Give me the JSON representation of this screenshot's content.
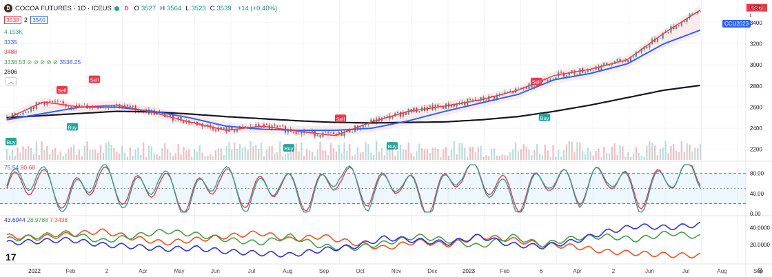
{
  "header": {
    "logo_letter": "₿",
    "title": "COCOA FUTURES · 1D · ICEUS",
    "market_status_color": "#26a69a",
    "delay_badge": "D",
    "ohlc": [
      {
        "k": "O",
        "v": "3527"
      },
      {
        "k": "H",
        "v": "3564"
      },
      {
        "k": "L",
        "v": "3523"
      },
      {
        "k": "C",
        "v": "3539"
      },
      {
        "k": "",
        "v": "+14 (+0.40%)"
      }
    ],
    "sell_price": "3538",
    "spread": "2",
    "buy_price": "3540"
  },
  "indicators": {
    "volume": "4.153K",
    "ma_blue": "3335",
    "ma_red": "3488",
    "supertrend_label": "3338.53  ⊘ ⊘ ⊘ ⊘ ⊘",
    "supertrend_value": "3538.25",
    "ma_black": "2806",
    "collapse_icon": "chevron-up"
  },
  "symbol_tag": "CCU2023",
  "currency": {
    "label": "USD",
    "sub": "t"
  },
  "stoch": {
    "k": "75.54",
    "d": "80.68"
  },
  "dmi": {
    "plus": "43.6944",
    "minus": "28.9788",
    "adx": "7.3438"
  },
  "colors": {
    "up": "#26a69a",
    "down": "#f23645",
    "blue": "#2962ff",
    "black": "#131722",
    "sell": "#f23645",
    "buy": "#26a69a",
    "dmi_blue": "#2b33e0",
    "dmi_green": "#43a047",
    "dmi_orange": "#f4511e"
  },
  "price_axis": [
    "3400",
    "3200",
    "3000",
    "2800",
    "2600",
    "2400",
    "2200"
  ],
  "stoch_axis": [
    "80.00",
    "40.00",
    "0.00"
  ],
  "dmi_axis": [
    "40.0000",
    "20.0000"
  ],
  "time_axis": [
    "2022",
    "Feb",
    "2",
    "Apr",
    "May",
    "Jun",
    "Jul",
    "Aug",
    "Sep",
    "Oct",
    "Nov",
    "Dec",
    "2023",
    "Feb",
    "6",
    "Apr",
    "2",
    "Jun",
    "Jul",
    "Aug",
    "Sep"
  ],
  "signals": [
    {
      "text": "Sell",
      "x": "Feb",
      "price": 2760
    },
    {
      "text": "Sell",
      "x": "Feb",
      "price": 2860
    },
    {
      "text": "Sell",
      "x": "Aug",
      "price": 2490
    },
    {
      "text": "Sell",
      "x": "Feb",
      "price": 2840
    },
    {
      "text": "Buy",
      "x": "2022",
      "price": 2270
    },
    {
      "text": "Buy",
      "x": "Jan",
      "price": 2410
    },
    {
      "text": "Buy",
      "x": "Aug",
      "price": 2210
    },
    {
      "text": "Buy",
      "x": "Oct",
      "price": 2230
    },
    {
      "text": "Buy",
      "x": "Mar",
      "price": 2500
    }
  ],
  "chart_data": {
    "type": "line",
    "title": "COCOA FUTURES · 1D · ICEUS",
    "x": [
      "2022-01",
      "2022-02",
      "2022-03",
      "2022-04",
      "2022-05",
      "2022-06",
      "2022-07",
      "2022-08",
      "2022-09",
      "2022-10",
      "2022-11",
      "2022-12",
      "2023-01",
      "2023-02",
      "2023-03",
      "2023-04",
      "2023-05",
      "2023-06",
      "2023-07",
      "2023-08"
    ],
    "series": [
      {
        "name": "",
        "values": [
          2490,
          2650,
          2600,
          2620,
          2550,
          2460,
          2380,
          2420,
          2370,
          2330,
          2460,
          2560,
          2610,
          2670,
          2760,
          2900,
          2960,
          3050,
          3300,
          3520
        ]
      },
      {
        "name": "",
        "values": [
          2480,
          2540,
          2600,
          2600,
          2560,
          2500,
          2420,
          2390,
          2380,
          2380,
          2400,
          2470,
          2560,
          2640,
          2720,
          2860,
          2920,
          3010,
          3200,
          3330
        ]
      },
      {
        "name": "",
        "values": [
          2500,
          2520,
          2540,
          2560,
          2555,
          2535,
          2510,
          2490,
          2470,
          2455,
          2450,
          2455,
          2460,
          2480,
          2510,
          2560,
          2620,
          2690,
          2760,
          2806
        ]
      }
    ],
    "ylim": [
      2100,
      3550
    ],
    "grid": true,
    "stoch_k": [
      55,
      80,
      20,
      85,
      30,
      75,
      15,
      85,
      25,
      70,
      20,
      90,
      30,
      75,
      10,
      90,
      60,
      20,
      80,
      40,
      85,
      25,
      80,
      75
    ],
    "stoch_d": [
      50,
      70,
      30,
      75,
      40,
      65,
      25,
      75,
      35,
      65,
      30,
      80,
      40,
      70,
      20,
      85,
      65,
      30,
      75,
      45,
      80,
      35,
      78,
      80
    ],
    "stoch_ylim": [
      0,
      100
    ],
    "dmi_plus": [
      22,
      24,
      26,
      20,
      18,
      15,
      16,
      12,
      10,
      8,
      14,
      18,
      28,
      25,
      22,
      30,
      20,
      18,
      24,
      35,
      42,
      40,
      43.7
    ],
    "dmi_minus": [
      26,
      30,
      34,
      24,
      30,
      36,
      32,
      26,
      22,
      30,
      18,
      16,
      22,
      30,
      25,
      18,
      30,
      20,
      28,
      30,
      26,
      34,
      29
    ],
    "dmi_adx": [
      30,
      28,
      32,
      36,
      28,
      22,
      26,
      30,
      34,
      26,
      30,
      22,
      16,
      24,
      20,
      30,
      26,
      20,
      18,
      12,
      10,
      8,
      7.3
    ],
    "dmi_ylim": [
      0,
      50
    ]
  }
}
